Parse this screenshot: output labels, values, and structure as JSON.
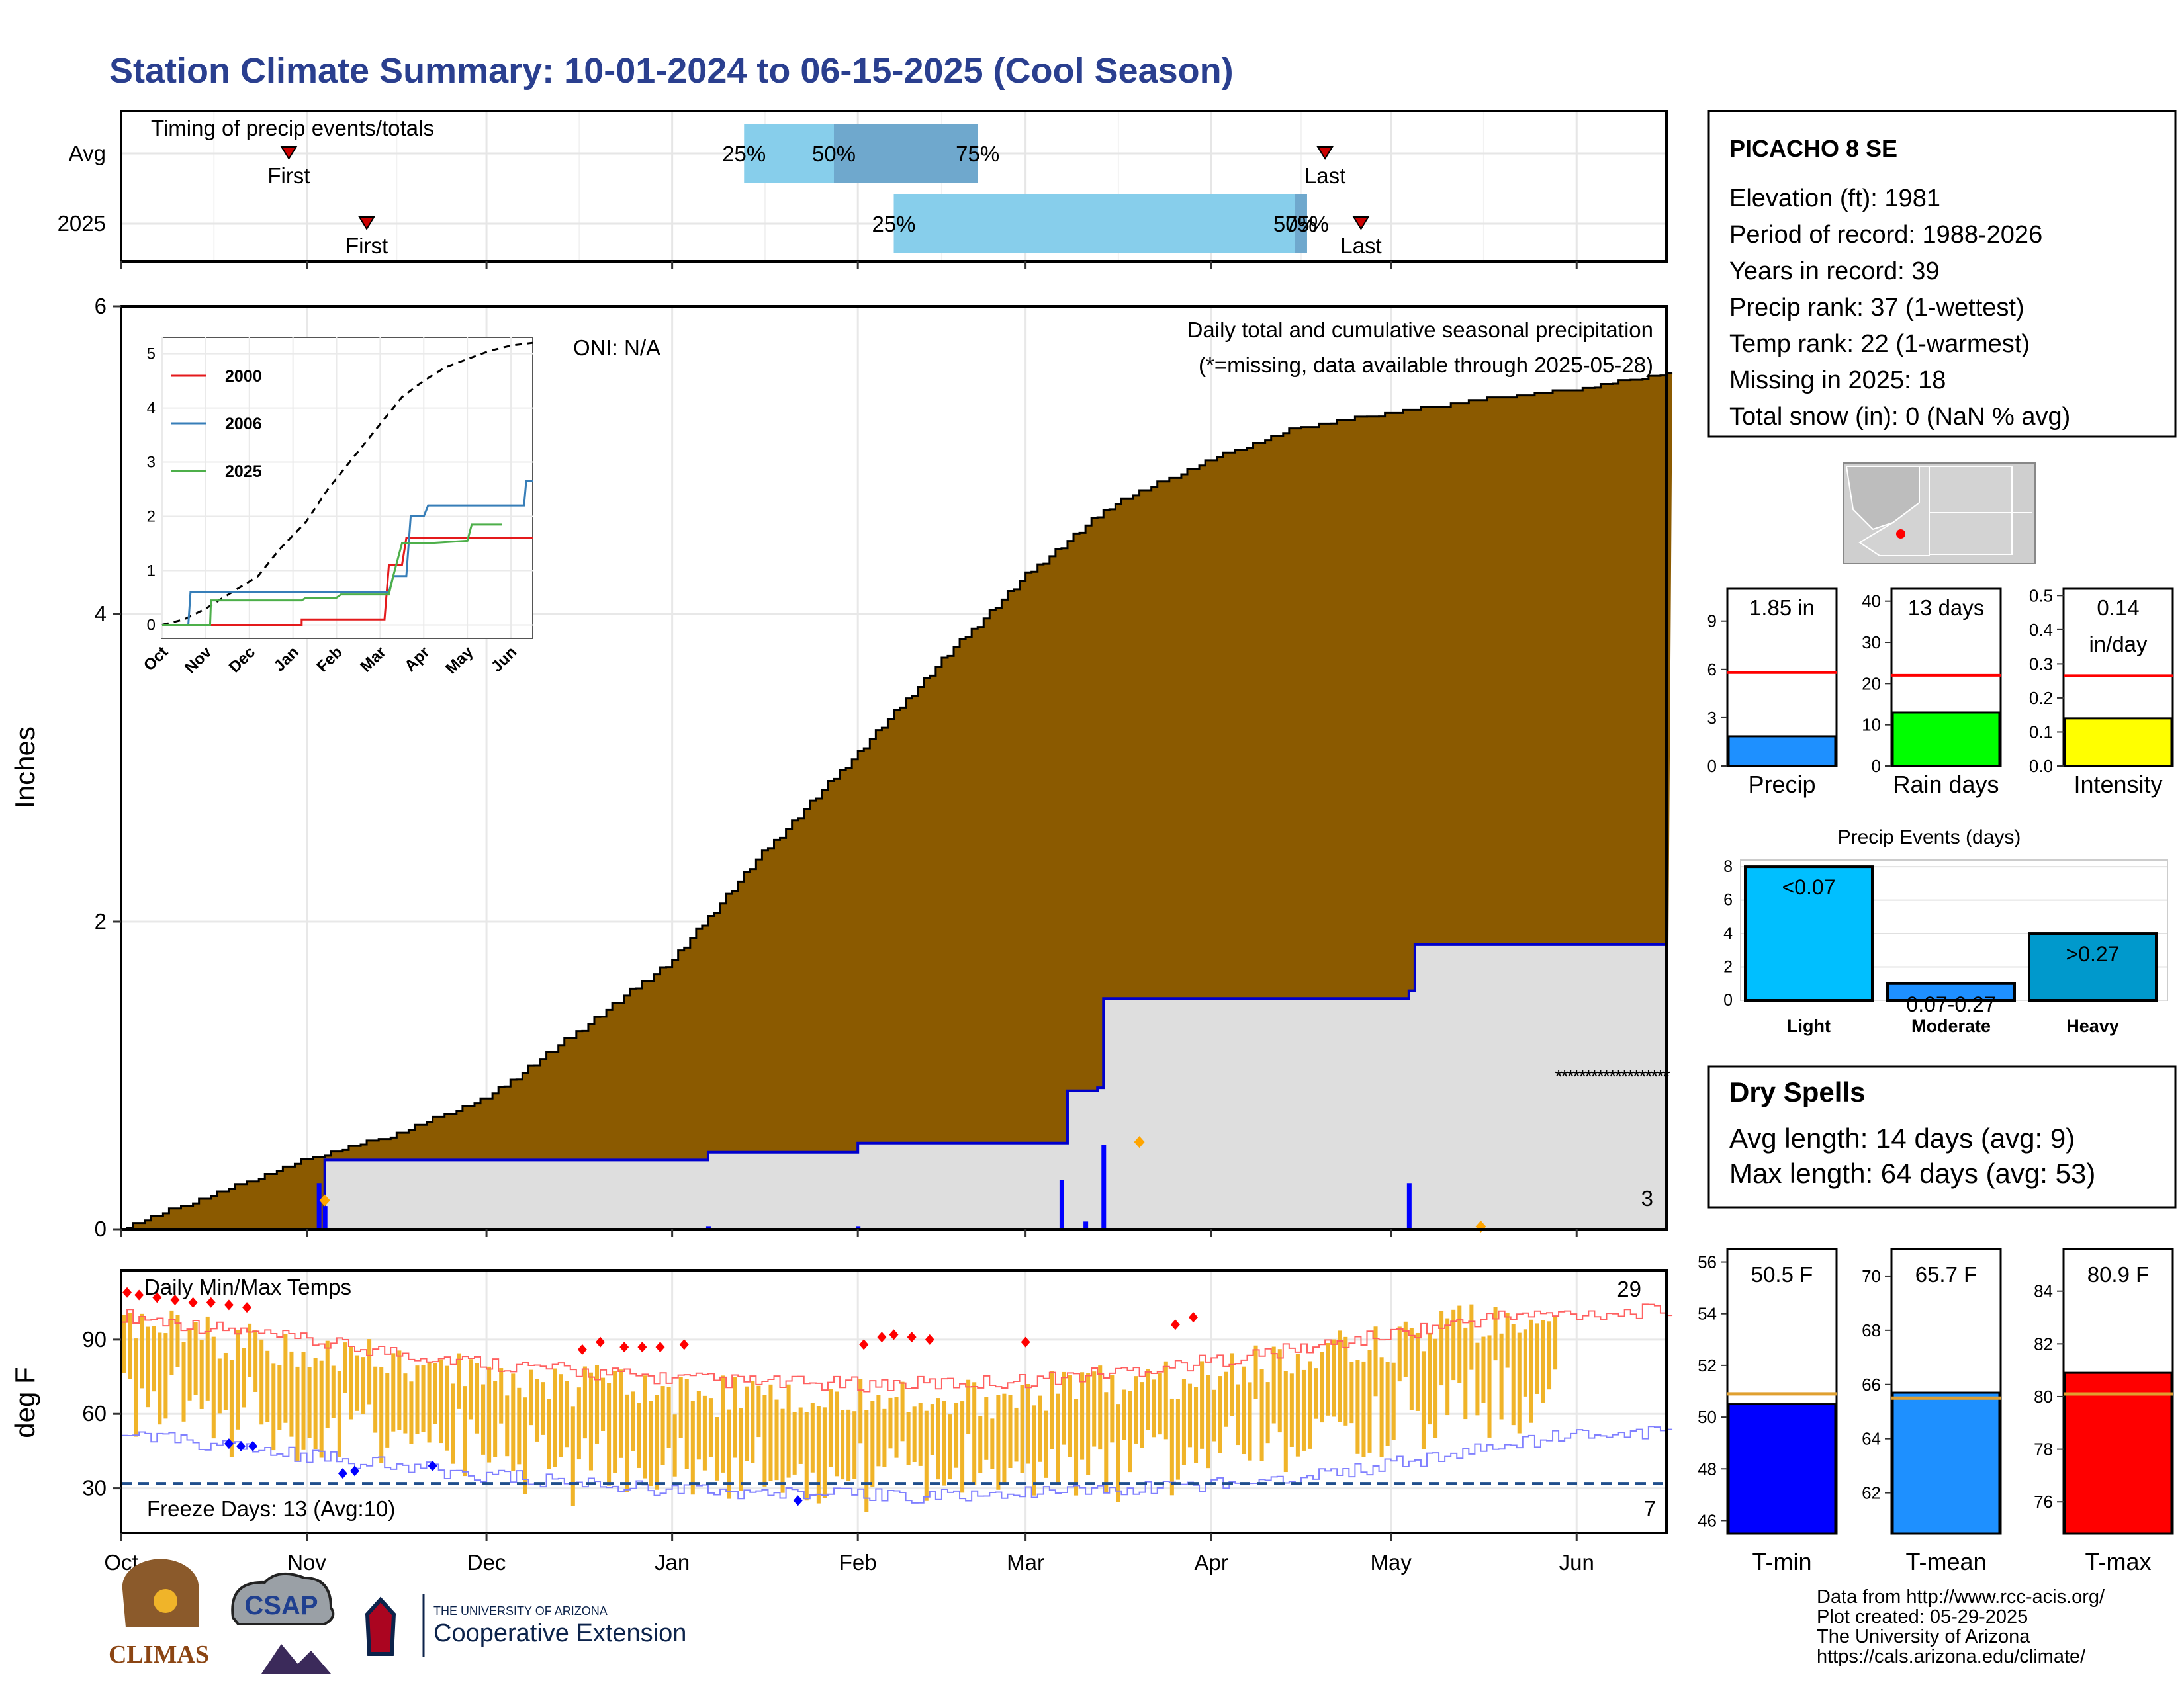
{
  "title": "Station Climate Summary: 10-01-2024 to 06-15-2025 (Cool Season)",
  "colors": {
    "title": "#2a3f8f",
    "cumulative_fill": "#8b5a00",
    "avg_cum_fill": "#dedede",
    "station_line": "#0000cc",
    "temp_bar": "#f0b429",
    "tmax_line": "#ff6060",
    "tmin_line": "#8080ff",
    "light_blue": "#87ceeb",
    "steel_blue": "#6fa8cd"
  },
  "month_labels": [
    "Oct",
    "Nov",
    "Dec",
    "Jan",
    "Feb",
    "Mar",
    "Apr",
    "May",
    "Jun"
  ],
  "timing": {
    "title": "Timing of precip events/totals",
    "rows": [
      {
        "label": "Avg",
        "first": "First",
        "last": "Last",
        "p25": "25%",
        "p50": "50%",
        "p75": "75%",
        "first_day": 28,
        "last_day": 201,
        "p25_day": 104,
        "p50_day": 119,
        "p75_day": 143
      },
      {
        "label": "2025",
        "first": "First",
        "last": "Last",
        "p25": "25%",
        "p50": "50%",
        "p75": "75%",
        "first_day": 41,
        "last_day": 207,
        "p25_day": 129,
        "p50_day": 196,
        "p75_day": 198
      }
    ]
  },
  "main": {
    "ylabel": "Inches",
    "yticks": [
      "0",
      "2",
      "4",
      "6"
    ],
    "oni": "ONI: N/A",
    "caption": "Daily total and cumulative seasonal precipitation",
    "missing_note": "(*=missing, data available through 2025-05-28)",
    "corner_count": "3"
  },
  "inset": {
    "yticks": [
      "0",
      "1",
      "2",
      "3",
      "4",
      "5"
    ],
    "months": [
      "Oct",
      "Nov",
      "Dec",
      "Jan",
      "Feb",
      "Mar",
      "Apr",
      "May",
      "Jun"
    ],
    "legend": [
      {
        "name": "2000",
        "color": "#e41a1c"
      },
      {
        "name": "2006",
        "color": "#377eb8"
      },
      {
        "name": "2025",
        "color": "#4daf4a"
      }
    ]
  },
  "temps": {
    "title": "Daily Min/Max Temps",
    "ylabel": "deg F",
    "yticks": [
      "30",
      "60",
      "90"
    ],
    "freeze": "Freeze Days: 13 (Avg:10)",
    "hot_count": "29",
    "cold_count": "7"
  },
  "station": {
    "name": "PICACHO 8 SE",
    "lines": [
      "Elevation (ft): 1981",
      "Period of record: 1988-2026",
      "Years in record: 39",
      "Precip rank: 37 (1-wettest)",
      "Temp rank: 22 (1-warmest)",
      "Missing in 2025: 18",
      "Total snow (in): 0 (NaN % avg)"
    ]
  },
  "mini_bars": [
    {
      "label": "Precip",
      "value_text": "1.85 in",
      "value": 1.85,
      "avg": 5.8,
      "max": 11,
      "ticks": [
        "0",
        "3",
        "6",
        "9"
      ],
      "color": "#1e90ff"
    },
    {
      "label": "Rain days",
      "value_text": "13 days",
      "value": 13,
      "avg": 22,
      "max": 43,
      "ticks": [
        "0",
        "10",
        "20",
        "30",
        "40"
      ],
      "color": "#00ff00"
    },
    {
      "label": "Intensity",
      "value_text": "0.14",
      "value_text2": "in/day",
      "value": 0.14,
      "avg": 0.265,
      "max": 0.52,
      "ticks": [
        "0.0",
        "0.1",
        "0.2",
        "0.3",
        "0.4",
        "0.5"
      ],
      "color": "#ffff00"
    }
  ],
  "events": {
    "title": "Precip Events (days)",
    "yticks": [
      "0",
      "2",
      "4",
      "6",
      "8"
    ],
    "bars": [
      {
        "cat": "Light",
        "label": "<0.07",
        "value": 8,
        "color": "#00bfff"
      },
      {
        "cat": "Moderate",
        "label": "0.07-0.27",
        "value": 1,
        "color": "#1e90ff"
      },
      {
        "cat": "Heavy",
        "label": ">0.27",
        "value": 4,
        "color": "#0099cc"
      }
    ]
  },
  "dry_spells": {
    "title": "Dry Spells",
    "avg": "Avg length: 14 days (avg: 9)",
    "max": "Max length: 64 days (avg: 53)"
  },
  "temp_bars": [
    {
      "label": "T-min",
      "value_text": "50.5 F",
      "value": 50.5,
      "avg": 50.9,
      "min": 45.5,
      "max": 56.5,
      "ticks": [
        "46",
        "48",
        "50",
        "52",
        "54",
        "56"
      ],
      "color": "#0000ff"
    },
    {
      "label": "T-mean",
      "value_text": "65.7 F",
      "value": 65.7,
      "avg": 65.5,
      "min": 60.5,
      "max": 71,
      "ticks": [
        "62",
        "64",
        "66",
        "68",
        "70"
      ],
      "color": "#1e90ff"
    },
    {
      "label": "T-max",
      "value_text": "80.9 F",
      "value": 80.9,
      "avg": 80.1,
      "min": 74.8,
      "max": 85.6,
      "ticks": [
        "76",
        "78",
        "80",
        "82",
        "84"
      ],
      "color": "#ff0000"
    }
  ],
  "footer": {
    "lines": [
      "Data from http://www.rcc-acis.org/",
      "Plot created: 05-29-2025",
      "The University of Arizona",
      "https://cals.arizona.edu/climate/"
    ],
    "logos": {
      "climas": "CLIMAS",
      "csap": "CSAP",
      "ua_small": "THE UNIVERSITY OF ARIZONA",
      "ua_big": "Cooperative Extension"
    }
  },
  "chart_data": {
    "type": "area",
    "title": "Daily total and cumulative seasonal precipitation",
    "ylabel": "Inches",
    "ylim": [
      0,
      6
    ],
    "x_months": [
      "Oct",
      "Nov",
      "Dec",
      "Jan",
      "Feb",
      "Mar",
      "Apr",
      "May",
      "Jun"
    ],
    "series": [
      {
        "name": "Average cumulative",
        "points": [
          [
            "Oct 1",
            0
          ],
          [
            "Oct 15",
            0.2
          ],
          [
            "Nov 1",
            0.45
          ],
          [
            "Nov 15",
            0.6
          ],
          [
            "Dec 1",
            0.85
          ],
          [
            "Dec 15",
            1.25
          ],
          [
            "Jan 1",
            1.75
          ],
          [
            "Jan 15",
            2.4
          ],
          [
            "Feb 1",
            3.1
          ],
          [
            "Feb 15",
            3.7
          ],
          [
            "Mar 1",
            4.25
          ],
          [
            "Mar 15",
            4.7
          ],
          [
            "Apr 1",
            5.0
          ],
          [
            "Apr 15",
            5.2
          ],
          [
            "May 1",
            5.3
          ],
          [
            "May 15",
            5.38
          ],
          [
            "Jun 1",
            5.45
          ],
          [
            "Jun 15",
            5.55
          ]
        ]
      },
      {
        "name": "2025 cumulative",
        "points": [
          [
            "Oct 1",
            0
          ],
          [
            "Nov 3",
            0
          ],
          [
            "Nov 4",
            0.45
          ],
          [
            "Jan 7",
            0.5
          ],
          [
            "Feb 1",
            0.56
          ],
          [
            "Mar 7",
            0.56
          ],
          [
            "Mar 8",
            0.9
          ],
          [
            "Mar 13",
            0.92
          ],
          [
            "Mar 14",
            1.5
          ],
          [
            "May 4",
            1.55
          ],
          [
            "May 5",
            1.85
          ],
          [
            "Jun 15",
            1.85
          ]
        ]
      },
      {
        "name": "2025 daily",
        "points": [
          [
            "Nov 3",
            0.3
          ],
          [
            "Nov 4",
            0.15
          ],
          [
            "Jan 7",
            0.02
          ],
          [
            "Feb 1",
            0.02
          ],
          [
            "Mar 7",
            0.32
          ],
          [
            "Mar 11",
            0.05
          ],
          [
            "Mar 14",
            0.55
          ],
          [
            "May 4",
            0.3
          ]
        ]
      }
    ]
  }
}
